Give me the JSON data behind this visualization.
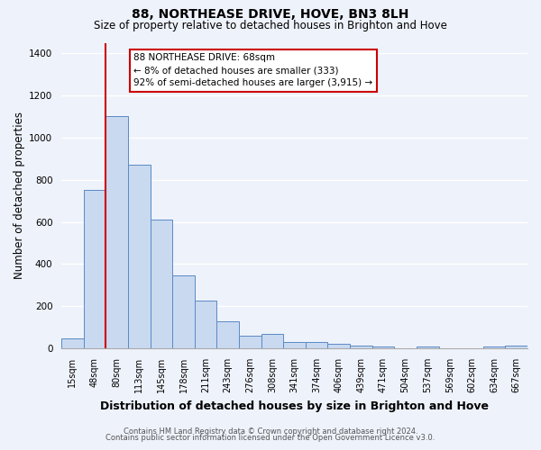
{
  "title": "88, NORTHEASE DRIVE, HOVE, BN3 8LH",
  "subtitle": "Size of property relative to detached houses in Brighton and Hove",
  "xlabel": "Distribution of detached houses by size in Brighton and Hove",
  "ylabel": "Number of detached properties",
  "footnote1": "Contains HM Land Registry data © Crown copyright and database right 2024.",
  "footnote2": "Contains public sector information licensed under the Open Government Licence v3.0.",
  "categories": [
    "15sqm",
    "48sqm",
    "80sqm",
    "113sqm",
    "145sqm",
    "178sqm",
    "211sqm",
    "243sqm",
    "276sqm",
    "308sqm",
    "341sqm",
    "374sqm",
    "406sqm",
    "439sqm",
    "471sqm",
    "504sqm",
    "537sqm",
    "569sqm",
    "602sqm",
    "634sqm",
    "667sqm"
  ],
  "values": [
    47,
    750,
    1100,
    870,
    610,
    345,
    225,
    130,
    58,
    68,
    32,
    30,
    22,
    15,
    10,
    0,
    10,
    0,
    0,
    10,
    13
  ],
  "bar_color": "#c9d9f0",
  "bar_edge_color": "#5b8ac5",
  "red_line_index": 1.5,
  "red_line_color": "#cc0000",
  "annotation_text": "88 NORTHEASE DRIVE: 68sqm\n← 8% of detached houses are smaller (333)\n92% of semi-detached houses are larger (3,915) →",
  "annotation_box_color": "white",
  "annotation_box_edge": "#cc0000",
  "ylim": [
    0,
    1450
  ],
  "yticks": [
    0,
    200,
    400,
    600,
    800,
    1000,
    1200,
    1400
  ],
  "bg_color": "#eef2fb",
  "grid_color": "#ffffff",
  "title_fontsize": 10,
  "subtitle_fontsize": 8.5,
  "ylabel_fontsize": 8.5,
  "xlabel_fontsize": 9,
  "tick_fontsize": 7,
  "annot_fontsize": 7.5,
  "footnote_fontsize": 6
}
